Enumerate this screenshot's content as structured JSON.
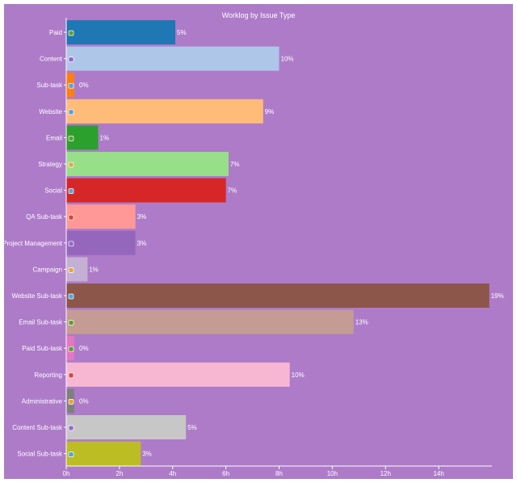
{
  "chart_data": {
    "type": "bar",
    "orientation": "horizontal",
    "title": "Worklog by Issue Type",
    "xlabel": "",
    "ylabel": "",
    "xlim": [
      0,
      16
    ],
    "x_unit_suffix": "h",
    "x_ticks": [
      0,
      2,
      4,
      6,
      8,
      10,
      12,
      14
    ],
    "grid": false,
    "legend": "none",
    "background": "#ae7bc9",
    "categories": [
      "Paid",
      "Content",
      "Sub-task",
      "Website",
      "Email",
      "Strategy",
      "Social",
      "QA Sub-task",
      "Project Management",
      "Campaign",
      "Website Sub-task",
      "Email Sub-task",
      "Paid Sub-task",
      "Reporting",
      "Administrative",
      "Content Sub-task",
      "Social Sub-task"
    ],
    "values": [
      4.1,
      8.0,
      0.3,
      7.4,
      1.2,
      6.1,
      6.0,
      2.6,
      2.6,
      0.8,
      15.9,
      10.8,
      0.3,
      8.4,
      0.3,
      4.5,
      2.8
    ],
    "data_labels": [
      "5%",
      "10%",
      "0%",
      "9%",
      "1%",
      "7%",
      "7%",
      "3%",
      "3%",
      "1%",
      "19%",
      "13%",
      "0%",
      "10%",
      "0%",
      "5%",
      "3%"
    ],
    "colors": [
      "#1f77b4",
      "#aec7e8",
      "#ff7f0e",
      "#ffbb78",
      "#2ca02c",
      "#98df8a",
      "#d62728",
      "#ff9896",
      "#9467bd",
      "#c5b0d5",
      "#8c564b",
      "#c49c94",
      "#e377c2",
      "#f7b6d2",
      "#7f7f7f",
      "#c7c7c7",
      "#bcbd22"
    ],
    "icon_colors": [
      "#5aa02c",
      "#9966cc",
      "#4fa3e0",
      "#4fa3e0",
      "#5aa02c",
      "#e8a33d",
      "#4fa3e0",
      "#d9443a",
      "#9966cc",
      "#e8a33d",
      "#4fa3e0",
      "#5aa02c",
      "#5aa02c",
      "#d9443a",
      "#e8a33d",
      "#9966cc",
      "#4fa3e0"
    ]
  }
}
